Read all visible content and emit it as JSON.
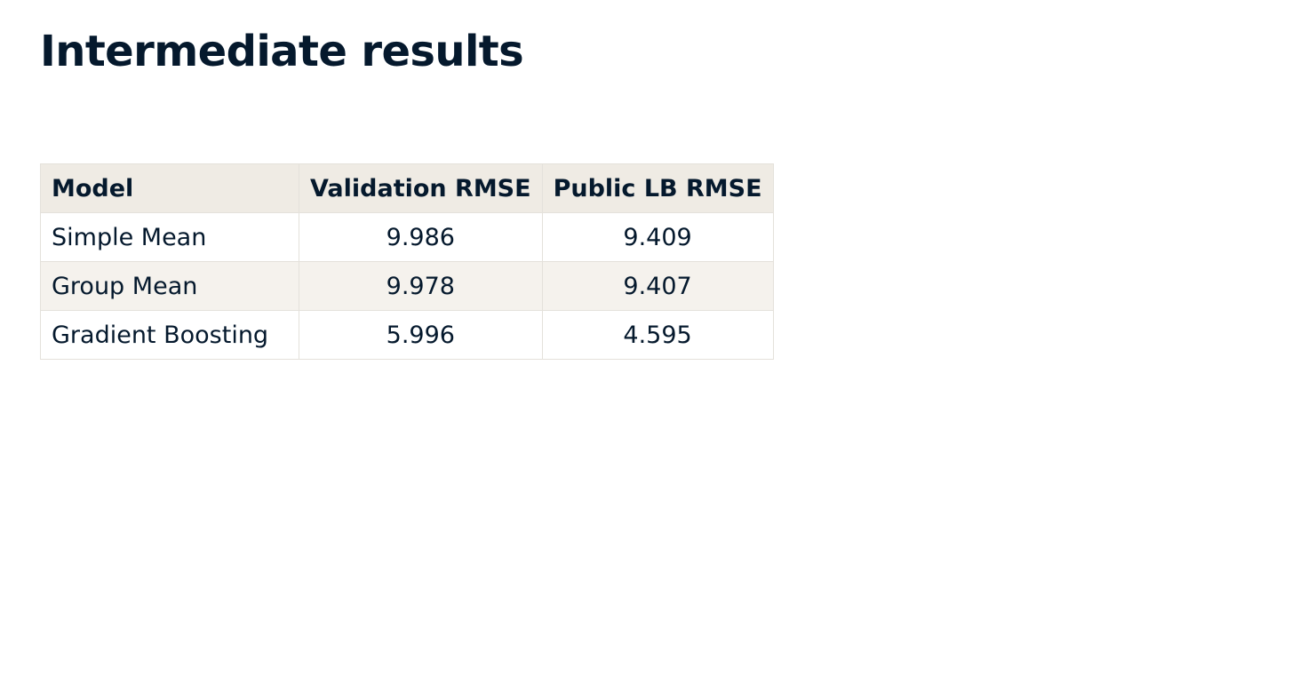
{
  "page": {
    "title": "Intermediate results"
  },
  "table": {
    "headers": [
      "Model",
      "Validation RMSE",
      "Public LB RMSE"
    ],
    "rows": [
      [
        "Simple Mean",
        "9.986",
        "9.409"
      ],
      [
        "Group Mean",
        "9.978",
        "9.407"
      ],
      [
        "Gradient Boosting",
        "5.996",
        "4.595"
      ]
    ]
  },
  "colors": {
    "text": "#05192d",
    "header_bg": "#efebe4",
    "stripe_bg": "#f5f2ed",
    "border": "#e4e1db"
  }
}
